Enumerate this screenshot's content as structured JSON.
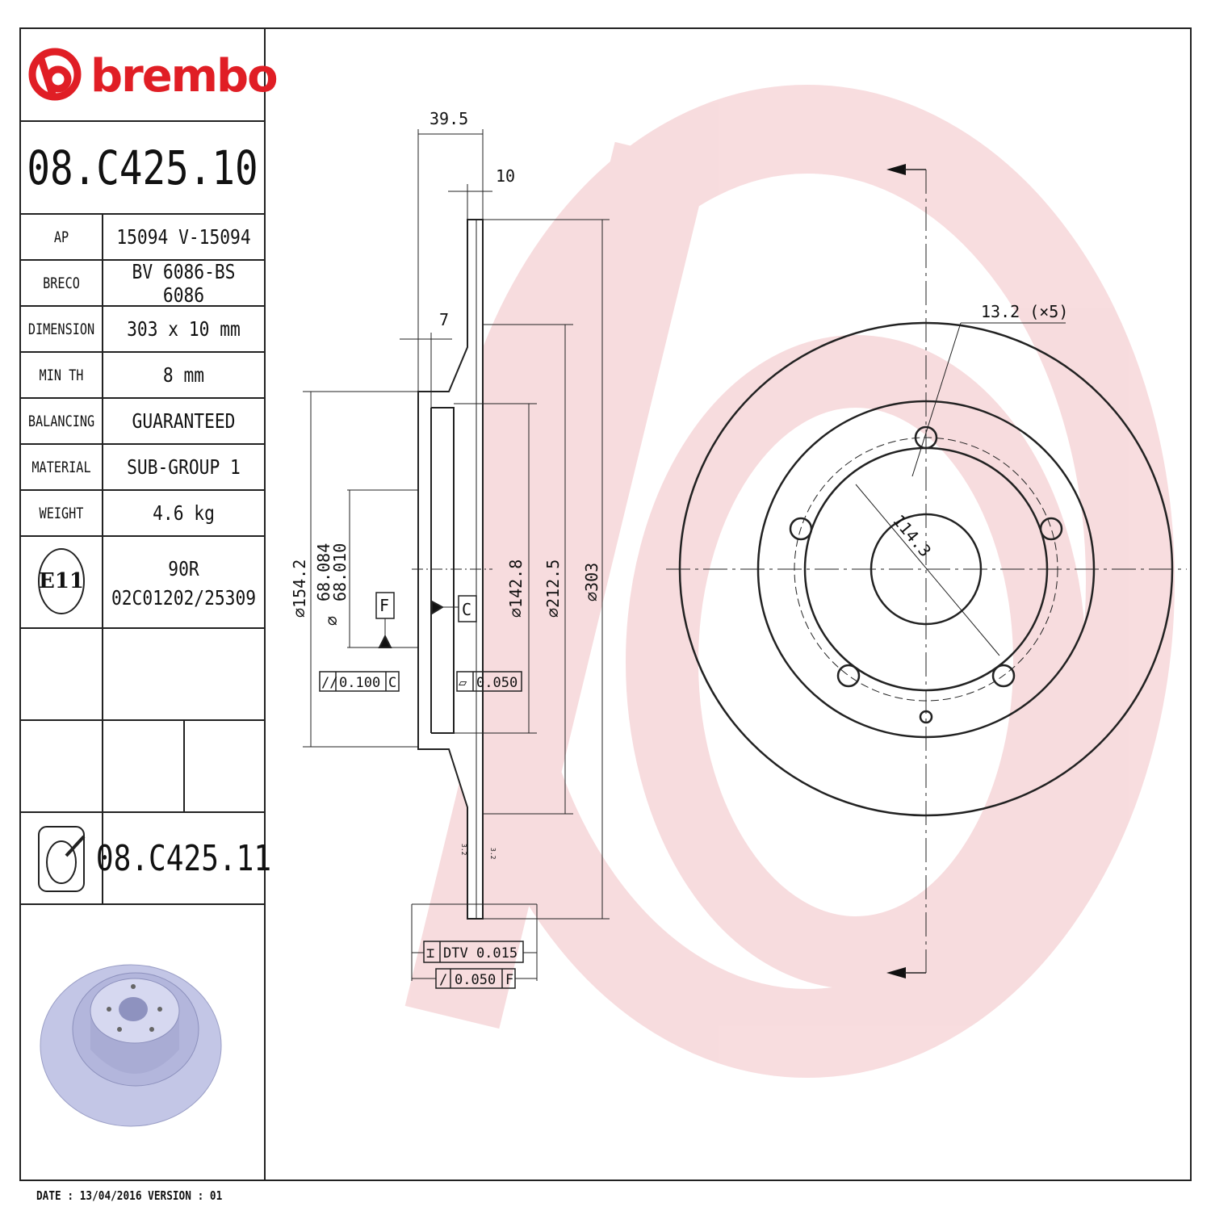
{
  "brand": {
    "name": "brembo",
    "color": "#e01e25",
    "watermark_color": "#f6d6d8"
  },
  "part_number": "08.C425.10",
  "specs": [
    {
      "label": "AP",
      "value": "15094 V-15094"
    },
    {
      "label": "BRECO",
      "value": "BV 6086-BS 6086"
    },
    {
      "label": "DIMENSION",
      "value": "303 x 10 mm"
    },
    {
      "label": "MIN TH",
      "value": "8 mm"
    },
    {
      "label": "BALANCING",
      "value": "GUARANTEED"
    },
    {
      "label": "MATERIAL",
      "value": "SUB-GROUP 1"
    },
    {
      "label": "WEIGHT",
      "value": "4.6 kg"
    }
  ],
  "approval": {
    "mark": "E11",
    "line1": "90R",
    "line2": "02C01202/25309"
  },
  "alt_part_number": "08.C425.11",
  "footer": "DATE : 13/04/2016 VERSION : 01",
  "dimensions": {
    "overall_width": "39.5",
    "thickness": "10",
    "hat_offset": "7",
    "d_hub_outer": "⌀154.2",
    "d_bore_max": "68.084",
    "d_bore_min": "68.010",
    "d_bore_sym": "⌀",
    "d_inner": "⌀142.8",
    "d_braking_inner": "⌀212.5",
    "d_outer": "⌀303",
    "bolt_hole": "13.2 (×5)",
    "pcd": "114.3",
    "datum_f": "F",
    "datum_c": "C",
    "parallelism": {
      "sym": "//",
      "value": "0.100",
      "datum": "C"
    },
    "flatness": {
      "sym": "▱",
      "value": "0.050"
    },
    "dtv": {
      "sym": "⌶",
      "value": "DTV 0.015"
    },
    "runout": {
      "sym": "/",
      "value": "0.050",
      "datum": "F"
    },
    "roughness_left": "3.2",
    "roughness_right": "3.2"
  }
}
